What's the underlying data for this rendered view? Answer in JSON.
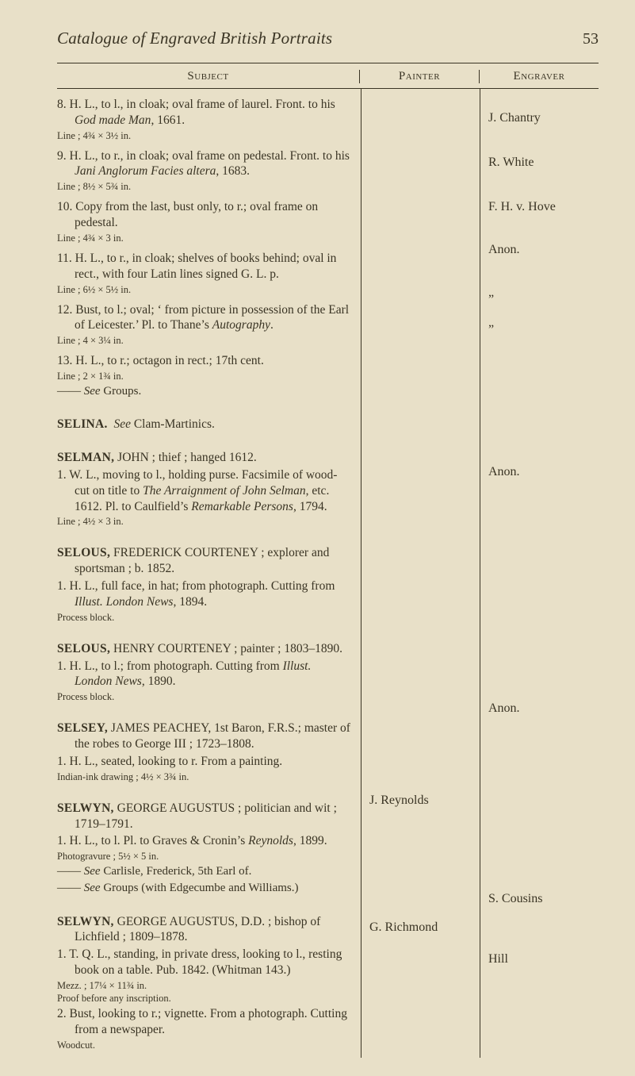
{
  "page": {
    "running_title": "Catalogue of Engraved British Portraits",
    "number": "53"
  },
  "columns": {
    "subject": "Subject",
    "painter": "Painter",
    "engraver": "Engraver"
  },
  "entries": {
    "e8": {
      "main": "8. H. L., to l., in cloak; oval frame of laurel. Front. to his <span class=\"ital\">God made Man</span>, 1661.",
      "dims": "Line ; 4¾ × 3½ in.",
      "engraver": "J. Chantry"
    },
    "e9": {
      "main": "9. H. L., to r., in cloak; oval frame on pedestal. Front. to his <span class=\"ital\">Jani Anglorum Facies altera</span>, 1683.",
      "dims": "Line ; 8½ × 5¾ in.",
      "engraver": "R. White"
    },
    "e10": {
      "main": "10. Copy from the last, bust only, to r.; oval frame on pedestal.",
      "dims": "Line ; 4¾ × 3 in.",
      "engraver": "F. H. v. Hove"
    },
    "e11": {
      "main": "11. H. L., to r., in cloak; shelves of books behind; oval in rect., with four Latin lines signed G. L. p.",
      "dims": "Line ; 6½ × 5½ in.",
      "engraver": "Anon."
    },
    "e12": {
      "main": "12. Bust, to l.; oval; ‘ from picture in possession of the Earl of Leicester.’ Pl. to Thane’s <span class=\"ital\">Autography</span>.",
      "dims": "Line ; 4 × 3¼ in.",
      "engraver": "„"
    },
    "e13": {
      "main": "13. H. L., to r.; octagon in rect.; 17th cent.",
      "dims": "Line ; 2 × 1¾ in.",
      "see": "—— <span class=\"ital\">See</span> Groups.",
      "engraver": "„"
    },
    "selina": {
      "main": "<span class=\"headword\">SELINA.</span> &nbsp;<span class=\"ital\">See</span> Clam-Martinics."
    },
    "selman": {
      "main": "<span class=\"headword\">SELMAN,</span> JOHN ; thief ; hanged 1612.",
      "sub1": "1. W. L., moving to l., holding purse. Facsimile of wood-cut on title to <span class=\"ital\">The Arraignment of John Selman</span>, etc. 1612. Pl. to Caulfield’s <span class=\"ital\">Remarkable Persons</span>, 1794.",
      "dims": "Line ; 4½ × 3 in.",
      "engraver": "Anon."
    },
    "selous": {
      "main": "<span class=\"headword\">SELOUS,</span> FREDERICK COURTENEY ; explorer and sportsman ; b. 1852.",
      "sub1": "1. H. L., full face, in hat; from photograph. Cutting from <span class=\"ital\">Illust. London News</span>, 1894.",
      "dims": "Process block."
    },
    "selous2": {
      "main": "<span class=\"headword\">SELOUS,</span> HENRY COURTENEY ; painter ; 1803–1890.",
      "sub1": "1. H. L., to l.; from photograph. Cutting from <span class=\"ital\">Illust. London News</span>, 1890.",
      "dims": "Process block."
    },
    "selsey": {
      "main": "<span class=\"headword\">SELSEY,</span> JAMES PEACHEY, 1st Baron, F.R.S.; master of the robes to George III ; 1723–1808.",
      "sub1": "1. H. L., seated, looking to r. From a painting.",
      "dims": "Indian-ink drawing ; 4½ × 3¾ in.",
      "engraver": "Anon."
    },
    "selwyn": {
      "main": "<span class=\"headword\">SELWYN,</span> GEORGE AUGUSTUS ; politician and wit ; 1719–1791.",
      "sub1": "1. H. L., to l. Pl. to Graves &amp; Cronin’s <span class=\"ital\">Reynolds</span>, 1899.",
      "dims": "Photogravure ; 5½ × 5 in.",
      "see1": "—— <span class=\"ital\">See</span> Carlisle, Frederick, 5th Earl of.",
      "see2": "—— <span class=\"ital\">See</span> Groups (with Edgecumbe and Williams.)",
      "painter": "J. Reynolds"
    },
    "selwyn2": {
      "main": "<span class=\"headword\">SELWYN,</span> GEORGE AUGUSTUS, D.D. ; bishop of Lichfield ; 1809–1878.",
      "sub1": "1. T. Q. L., standing, in private dress, looking to l., resting book on a table. Pub. 1842. (Whitman 143.)",
      "dims": "Mezz. ; 17¼ × 11¾ in.<br>Proof before any inscription.",
      "sub2": "2. Bust, looking to r.; vignette. From a photograph. Cutting from a newspaper.",
      "dims2": "Woodcut.",
      "painter": "G. Richmond",
      "engraver1": "S. Cousins",
      "engraver2": "Hill"
    }
  }
}
